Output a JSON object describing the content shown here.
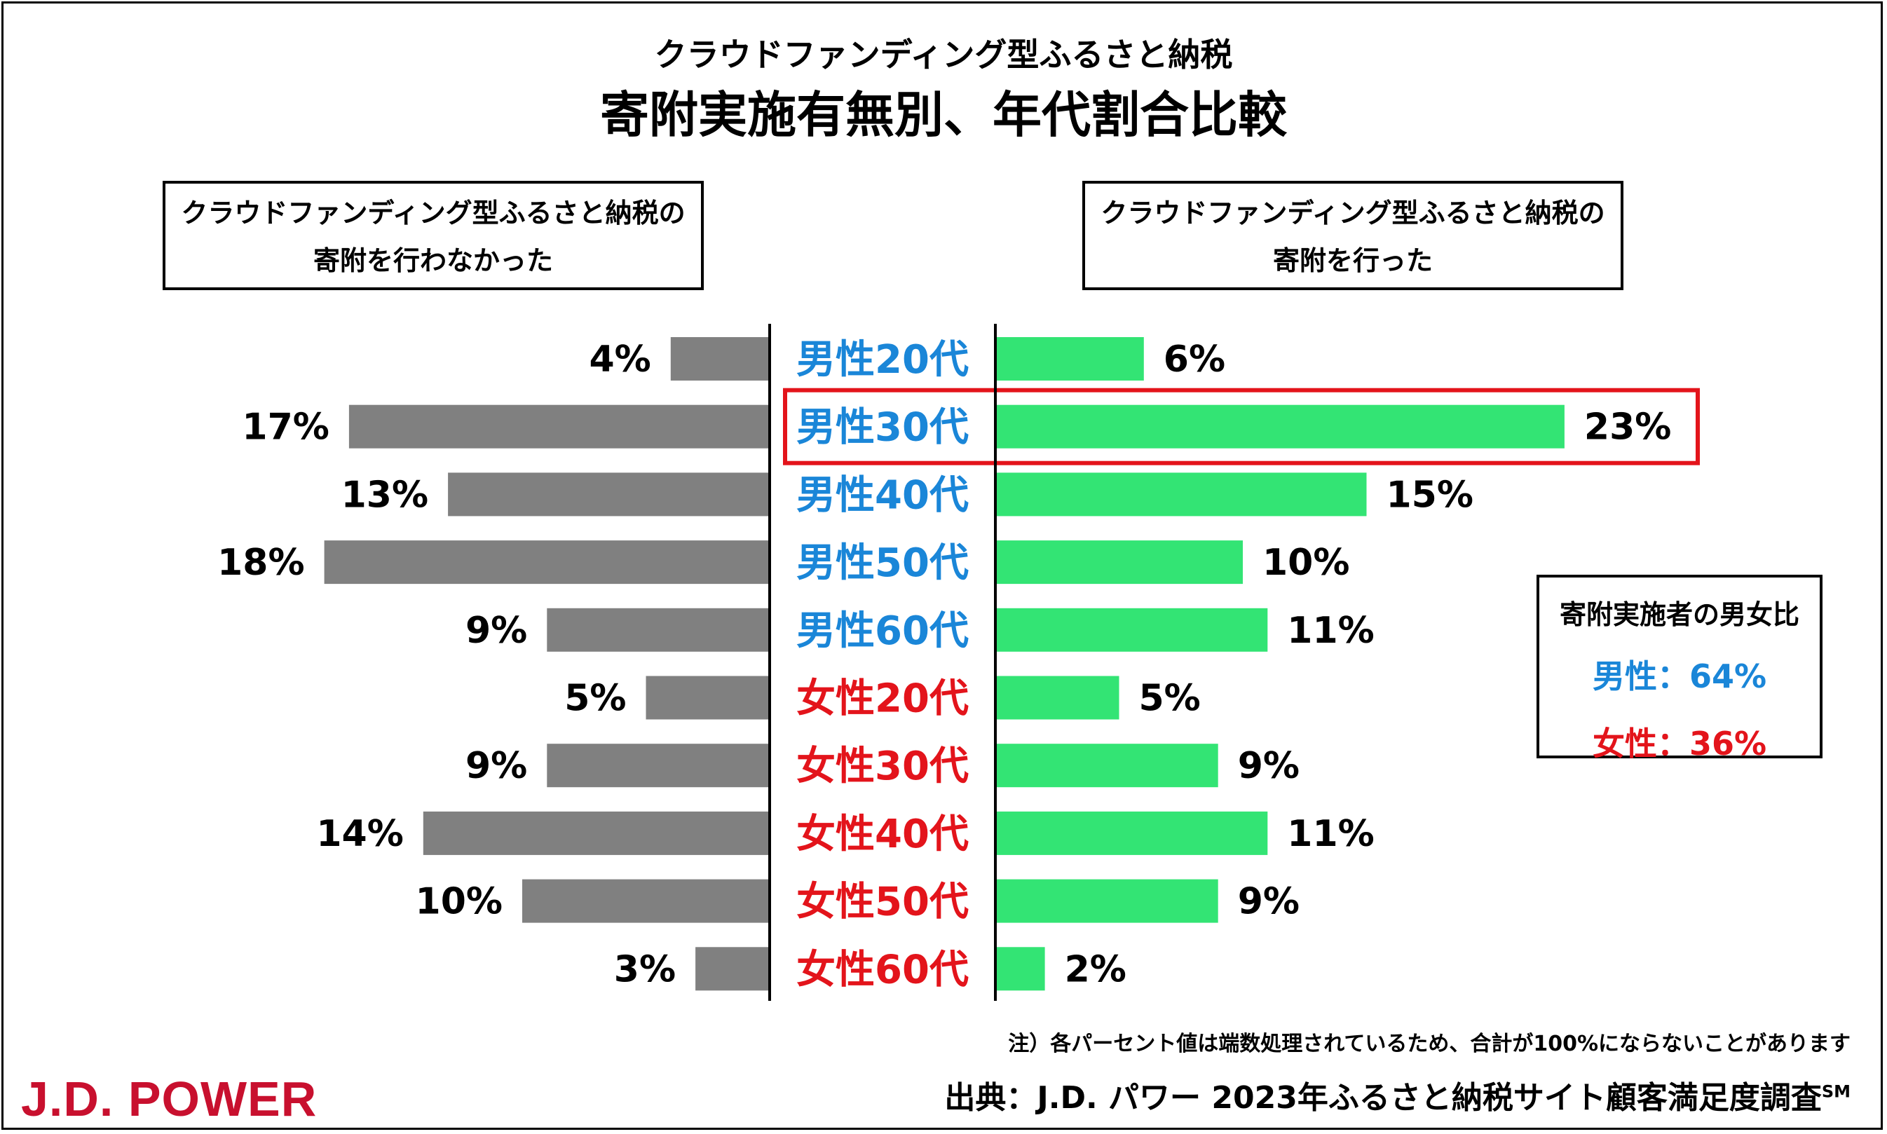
{
  "title": "クラウドファンディング型ふるさと納税",
  "subtitle": "寄附実施有無別、年代割合比較",
  "panels": {
    "left": {
      "line1": "クラウドファンディング型ふるさと納税の",
      "line2": "寄附を行わなかった"
    },
    "right": {
      "line1": "クラウドファンディング型ふるさと納税の",
      "line2": "寄附を行った"
    }
  },
  "colors": {
    "left_bar": "#808080",
    "right_bar": "#33e474",
    "male_label": "#1a86d8",
    "female_label": "#e3141b",
    "highlight": "#e3141b",
    "logo": "#c8102e"
  },
  "chart_data": {
    "type": "bar",
    "orientation": "horizontal-butterfly",
    "categories": [
      "男性20代",
      "男性30代",
      "男性40代",
      "男性50代",
      "男性60代",
      "女性20代",
      "女性30代",
      "女性40代",
      "女性50代",
      "女性60代"
    ],
    "category_groups": [
      "male",
      "male",
      "male",
      "male",
      "male",
      "female",
      "female",
      "female",
      "female",
      "female"
    ],
    "series": [
      {
        "name": "クラウドファンディング型ふるさと納税の寄附を行わなかった",
        "side": "left",
        "values": [
          4,
          17,
          13,
          18,
          9,
          5,
          9,
          14,
          10,
          3
        ]
      },
      {
        "name": "クラウドファンディング型ふるさと納税の寄附を行った",
        "side": "right",
        "values": [
          6,
          23,
          15,
          10,
          11,
          5,
          9,
          11,
          9,
          2
        ]
      }
    ],
    "value_suffix": "%",
    "highlighted_category": "男性30代"
  },
  "legend_box": {
    "title": "寄附実施者の男女比",
    "male": "男性：64%",
    "female": "女性：36%"
  },
  "footer": {
    "note": "注）各パーセント値は端数処理されているため、合計が100%にならないことがあります",
    "source": "出典：J.D. パワー 2023年ふるさと納税サイト顧客満足度調査",
    "source_mark": "SM",
    "logo": "J.D. POWER"
  }
}
